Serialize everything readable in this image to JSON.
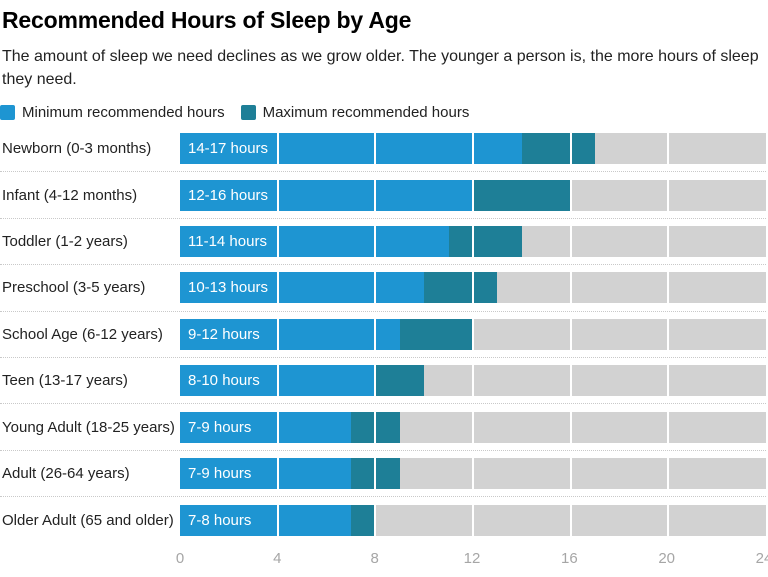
{
  "header": {
    "title": "Recommended Hours of Sleep by Age",
    "subtitle": "The amount of sleep we need declines as we grow older. The younger a person is, the more hours of sleep they need."
  },
  "legend": [
    {
      "label": "Minimum recommended hours",
      "color": "#1e95d2"
    },
    {
      "label": "Maximum recommended hours",
      "color": "#1e7f97"
    }
  ],
  "chart_data": {
    "type": "bar",
    "orientation": "horizontal",
    "title": "Recommended Hours of Sleep by Age",
    "subtitle": "The amount of sleep we need declines as we grow older. The younger a person is, the more hours of sleep they need.",
    "categories": [
      "Newborn (0-3 months)",
      "Infant (4-12 months)",
      "Toddler (1-2 years)",
      "Preschool (3-5 years)",
      "School Age (6-12 years)",
      "Teen (13-17 years)",
      "Young Adult (18-25 years)",
      "Adult (26-64 years)",
      "Older Adult (65 and older)"
    ],
    "series": [
      {
        "name": "Minimum recommended hours",
        "values": [
          14,
          12,
          11,
          10,
          9,
          8,
          7,
          7,
          7
        ],
        "color": "#1e95d2"
      },
      {
        "name": "Maximum recommended hours",
        "values": [
          17,
          16,
          14,
          13,
          12,
          10,
          9,
          9,
          8
        ],
        "color": "#1e7f97"
      }
    ],
    "bar_labels": [
      "14-17 hours",
      "12-16 hours",
      "11-14 hours",
      "10-13 hours",
      "9-12 hours",
      "8-10 hours",
      "7-9 hours",
      "7-9 hours",
      "7-8 hours"
    ],
    "xlim": [
      0,
      24
    ],
    "x_ticks": [
      "0",
      "4",
      "8",
      "12",
      "16",
      "20",
      "24"
    ],
    "gridlines": [
      4,
      8,
      12,
      16,
      20
    ],
    "grid": true,
    "legend_position": "top",
    "track_color": "#d2d2d2",
    "gridline_color": "#ffffff",
    "axis_text_color": "#a6a6a6"
  }
}
